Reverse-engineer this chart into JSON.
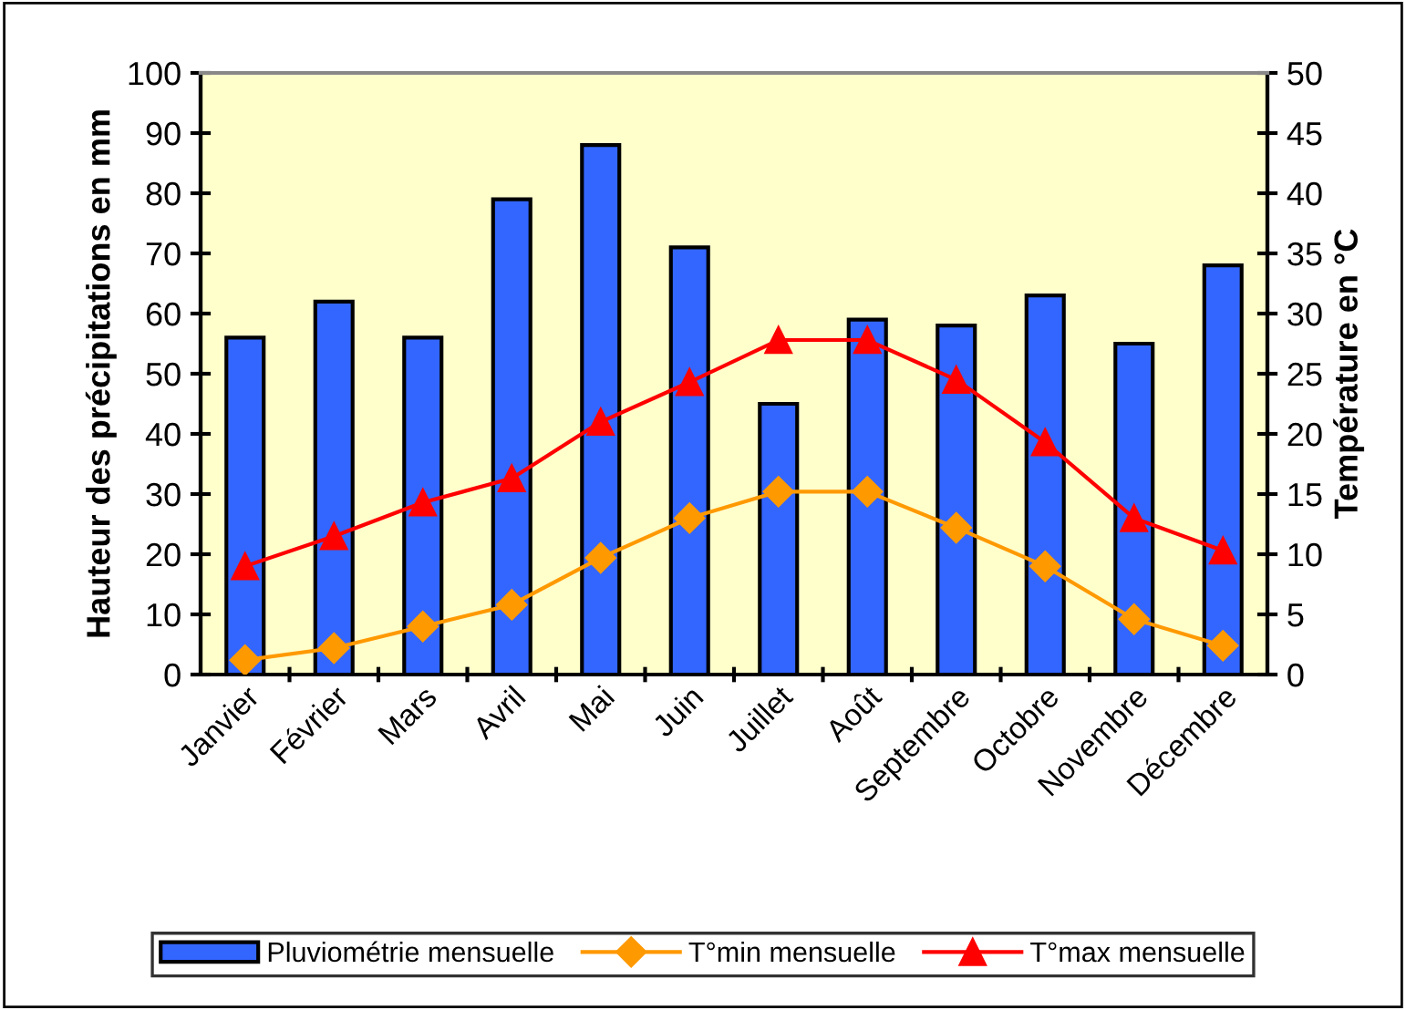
{
  "chart_data": {
    "type": "bar",
    "categories": [
      "Janvier",
      "Février",
      "Mars",
      "Avril",
      "Mai",
      "Juin",
      "Juillet",
      "Août",
      "Septembre",
      "Octobre",
      "Novembre",
      "Décembre"
    ],
    "ylabel": "Hauteur des précipitations en mm",
    "y2label": "Température en °C",
    "ylim": [
      0,
      100
    ],
    "yticks": [
      0,
      10,
      20,
      30,
      40,
      50,
      60,
      70,
      80,
      90,
      100
    ],
    "y2lim": [
      0,
      50
    ],
    "y2ticks": [
      0,
      5,
      10,
      15,
      20,
      25,
      30,
      35,
      40,
      45,
      50
    ],
    "grid": false,
    "legend": "bottom",
    "series": [
      {
        "name": "Pluviométrie mensuelle",
        "color": "#3366ff",
        "values": [
          56,
          62,
          56,
          79,
          88,
          71,
          45,
          59,
          58,
          63,
          55,
          68
        ]
      },
      {
        "name": "T°min mensuelle",
        "type": "line",
        "axis": "y2",
        "color": "#ff9900",
        "marker": "diamond",
        "values": [
          1.2,
          2.2,
          4,
          5.8,
          9.7,
          13,
          15.2,
          15.2,
          12.2,
          9,
          4.6,
          2.4
        ]
      },
      {
        "name": "T°max mensuelle",
        "type": "line",
        "axis": "y2",
        "color": "#ff0000",
        "marker": "triangle",
        "values": [
          9,
          11.5,
          14.3,
          16.3,
          21,
          24.3,
          27.8,
          27.8,
          24.5,
          19.3,
          13,
          10.3
        ]
      }
    ]
  }
}
